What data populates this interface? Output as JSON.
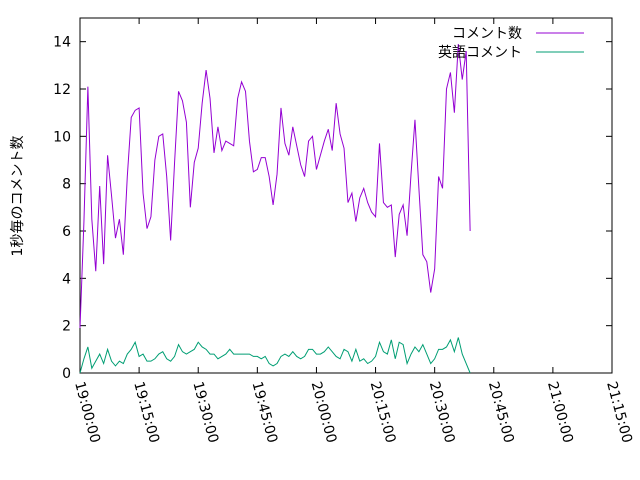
{
  "chart_data": {
    "type": "line",
    "title": "",
    "xlabel": "",
    "ylabel": "1秒毎のコメント数",
    "xlim": [
      "19:00:00",
      "21:15:00"
    ],
    "ylim": [
      0,
      15
    ],
    "x_ticks": [
      "19:00:00",
      "19:15:00",
      "19:30:00",
      "19:45:00",
      "20:00:00",
      "20:15:00",
      "20:30:00",
      "20:45:00",
      "21:00:00",
      "21:15:00"
    ],
    "y_ticks": [
      0,
      2,
      4,
      6,
      8,
      10,
      12,
      14
    ],
    "grid": false,
    "legend_position": "top-right",
    "x_start": "19:00:00",
    "x_step_seconds": 60,
    "series": [
      {
        "name": "コメント数",
        "color": "#9400D3",
        "values": [
          1.9,
          6.4,
          12.1,
          6.5,
          4.3,
          7.9,
          4.6,
          9.2,
          7.5,
          5.7,
          6.5,
          5.0,
          8.3,
          10.8,
          11.1,
          11.2,
          7.6,
          6.1,
          6.6,
          9.0,
          10.0,
          10.1,
          8.3,
          5.6,
          8.9,
          11.9,
          11.5,
          10.6,
          7.0,
          8.9,
          9.5,
          11.4,
          12.8,
          11.6,
          9.3,
          10.4,
          9.4,
          9.8,
          9.7,
          9.6,
          11.6,
          12.3,
          11.9,
          9.8,
          8.5,
          8.6,
          9.1,
          9.1,
          8.3,
          7.1,
          8.4,
          11.2,
          9.7,
          9.2,
          10.4,
          9.6,
          8.8,
          8.3,
          9.8,
          10.0,
          8.6,
          9.2,
          9.8,
          10.3,
          9.4,
          11.4,
          10.1,
          9.5,
          7.2,
          7.6,
          6.4,
          7.4,
          7.8,
          7.2,
          6.8,
          6.6,
          9.7,
          7.2,
          7.0,
          7.1,
          4.9,
          6.7,
          7.1,
          5.8,
          8.4,
          10.7,
          7.8,
          5.0,
          4.7,
          3.4,
          4.4,
          8.3,
          7.8,
          12.0,
          12.7,
          11.0,
          13.9,
          12.4,
          13.6,
          6.0
        ]
      },
      {
        "name": "英語コメント",
        "color": "#009E73",
        "values": [
          0.0,
          0.6,
          1.1,
          0.2,
          0.5,
          0.8,
          0.4,
          1.0,
          0.5,
          0.3,
          0.5,
          0.4,
          0.8,
          1.0,
          1.3,
          0.7,
          0.8,
          0.5,
          0.5,
          0.6,
          0.8,
          0.9,
          0.6,
          0.5,
          0.7,
          1.2,
          0.9,
          0.8,
          0.9,
          1.0,
          1.3,
          1.1,
          1.0,
          0.8,
          0.8,
          0.6,
          0.7,
          0.8,
          1.0,
          0.8,
          0.8,
          0.8,
          0.8,
          0.8,
          0.7,
          0.7,
          0.6,
          0.7,
          0.4,
          0.3,
          0.4,
          0.7,
          0.8,
          0.7,
          0.9,
          0.7,
          0.6,
          0.7,
          1.0,
          1.0,
          0.8,
          0.8,
          0.9,
          1.1,
          0.9,
          0.7,
          0.6,
          1.0,
          0.9,
          0.5,
          1.0,
          0.5,
          0.6,
          0.4,
          0.5,
          0.7,
          1.3,
          0.9,
          0.8,
          1.4,
          0.6,
          1.3,
          1.2,
          0.4,
          0.8,
          1.1,
          0.9,
          1.2,
          0.8,
          0.4,
          0.6,
          1.0,
          1.0,
          1.1,
          1.4,
          0.9,
          1.5,
          0.8,
          0.4,
          0.0
        ]
      }
    ]
  }
}
